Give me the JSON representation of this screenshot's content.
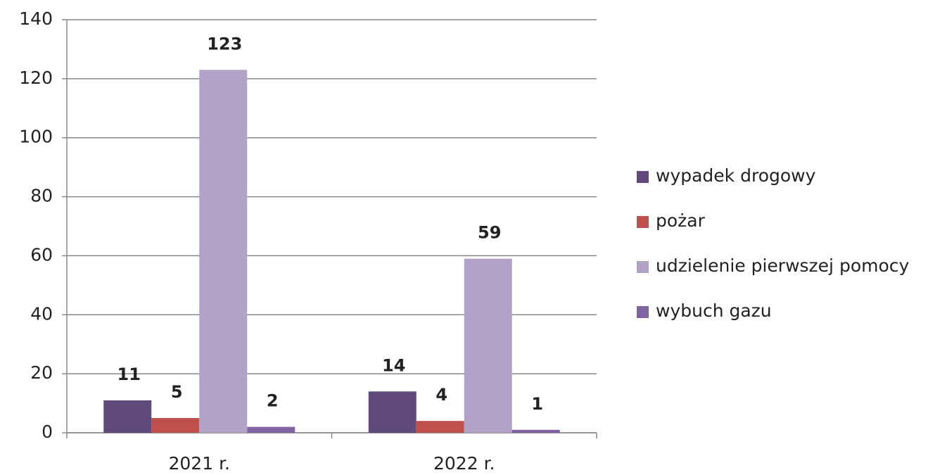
{
  "chart_data": {
    "type": "bar",
    "categories": [
      "2021 r.",
      "2022 r."
    ],
    "series": [
      {
        "name": "wypadek drogowy",
        "color": "#604a7b",
        "values": [
          11,
          14
        ]
      },
      {
        "name": "pożar",
        "color": "#c0504d",
        "values": [
          5,
          4
        ]
      },
      {
        "name": "udzielenie pierwszej pomocy",
        "color": "#b3a2c7",
        "values": [
          123,
          59
        ]
      },
      {
        "name": "wybuch gazu",
        "color": "#8064a2",
        "values": [
          2,
          1
        ]
      }
    ],
    "ylim": [
      0,
      140
    ],
    "yticks": [
      0,
      20,
      40,
      60,
      80,
      100,
      120,
      140
    ],
    "grid": true,
    "legend": "right"
  }
}
